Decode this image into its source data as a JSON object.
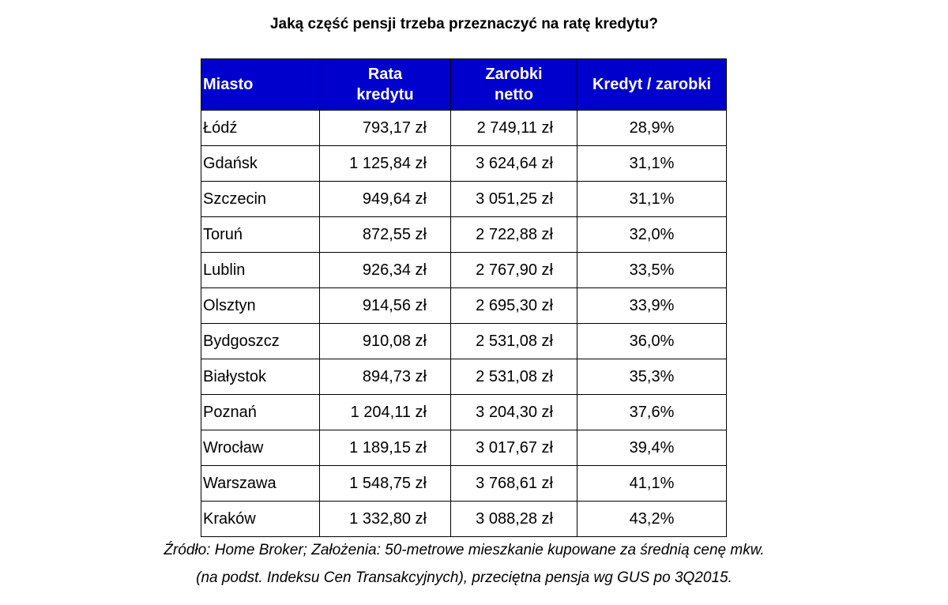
{
  "chart_data": {
    "type": "table",
    "title": "Jaką część pensji trzeba przeznaczyć na ratę kredytu?",
    "headers": [
      "Miasto",
      "Rata kredytu",
      "Zarobki netto",
      "Kredyt / zarobki"
    ],
    "header_lines": [
      [
        "Miasto"
      ],
      [
        "Rata",
        "kredytu"
      ],
      [
        "Zarobki",
        "netto"
      ],
      [
        "Kredyt / zarobki"
      ]
    ],
    "rows": [
      [
        "Łódź",
        "793,17 zł",
        "2 749,11 zł",
        "28,9%"
      ],
      [
        "Gdańsk",
        "1 125,84 zł",
        "3 624,64 zł",
        "31,1%"
      ],
      [
        "Szczecin",
        "949,64 zł",
        "3 051,25 zł",
        "31,1%"
      ],
      [
        "Toruń",
        "872,55 zł",
        "2 722,88 zł",
        "32,0%"
      ],
      [
        "Lublin",
        "926,34 zł",
        "2 767,90 zł",
        "33,5%"
      ],
      [
        "Olsztyn",
        "914,56 zł",
        "2 695,30 zł",
        "33,9%"
      ],
      [
        "Bydgoszcz",
        "910,08 zł",
        "2 531,08 zł",
        "36,0%"
      ],
      [
        "Białystok",
        "894,73 zł",
        "2 531,08 zł",
        "35,3%"
      ],
      [
        "Poznań",
        "1 204,11 zł",
        "3 204,30 zł",
        "37,6%"
      ],
      [
        "Wrocław",
        "1 189,15 zł",
        "3 017,67 zł",
        "39,4%"
      ],
      [
        "Warszawa",
        "1 548,75 zł",
        "3 768,61 zł",
        "41,1%"
      ],
      [
        "Kraków",
        "1 332,80 zł",
        "3 088,28 zł",
        "43,2%"
      ]
    ],
    "footnote": [
      "Źródło: Home Broker; Założenia: 50-metrowe mieszkanie kupowane za średnią cenę mkw.",
      "(na podst. Indeksu Cen Transakcyjnych), przeciętna pensja wg GUS po 3Q2015."
    ]
  },
  "colors": {
    "header_background": "#0000cc",
    "header_text": "#ffffff",
    "grid": "#000000"
  }
}
